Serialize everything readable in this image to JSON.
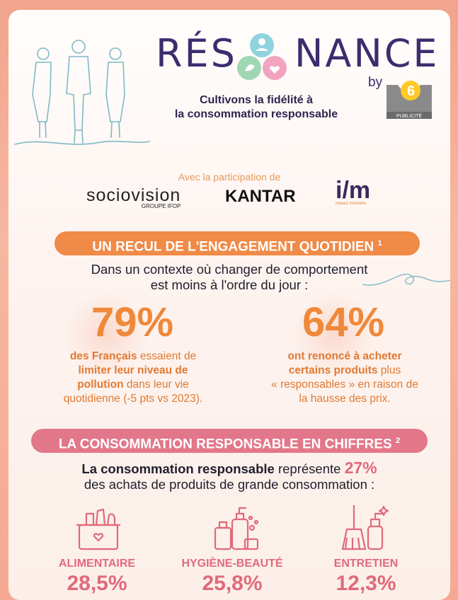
{
  "header": {
    "logo_left": "RÉS",
    "logo_right": "NANCE",
    "by": "by",
    "brand_badge": "PUBLICITÉ",
    "tagline_line1": "Cultivons la fidélité à",
    "tagline_line2": "la consommation responsable"
  },
  "partners": {
    "intro": "Avec la participation de",
    "sociovision_main": "socio",
    "sociovision_rest": "vision",
    "sociovision_sub": "GROUPE IFOP",
    "kantar": "KANTAR",
    "im": "i/m",
    "im_sub": "impact mémoire"
  },
  "section1": {
    "title": "UN RECUL DE L'ENGAGEMENT QUOTIDIEN",
    "note": "1",
    "intro_line1": "Dans un contexte où changer de comportement",
    "intro_line2": "est moins à l'ordre du jour :",
    "stat1": {
      "value": "79%",
      "line1_bold": "des Français",
      "line1_rest": " essaient de",
      "line2_bold": "limiter leur niveau de",
      "line3_bold": "pollution",
      "line3_rest": " dans leur vie",
      "line4": "quotidienne (-5 pts vs 2023)."
    },
    "stat2": {
      "value": "64%",
      "line1_bold": "ont renoncé à acheter",
      "line2_bold": "certains produits",
      "line2_rest": " plus",
      "line3": "« responsables » en raison de",
      "line4": "la hausse des prix."
    }
  },
  "section2": {
    "title": "LA CONSOMMATION RESPONSABLE EN CHIFFRES",
    "note": "2",
    "line1_bold": "La consommation responsable",
    "line1_rest": " représente ",
    "line1_pct": "27%",
    "line2": "des achats de produits de grande consommation :",
    "categories": [
      {
        "label": "ALIMENTAIRE",
        "value": "28,5%",
        "icon": "grocery-basket-icon"
      },
      {
        "label": "HYGIÈNE-BEAUTÉ",
        "value": "25,8%",
        "icon": "cosmetics-icon"
      },
      {
        "label": "ENTRETIEN",
        "value": "12,3%",
        "icon": "cleaning-broom-icon"
      }
    ]
  },
  "colors": {
    "navy": "#3b2d6e",
    "orange": "#f0883a",
    "pink": "#e06a7a",
    "banner_orange": "#ef8a47",
    "banner_pink": "#e3778a"
  }
}
